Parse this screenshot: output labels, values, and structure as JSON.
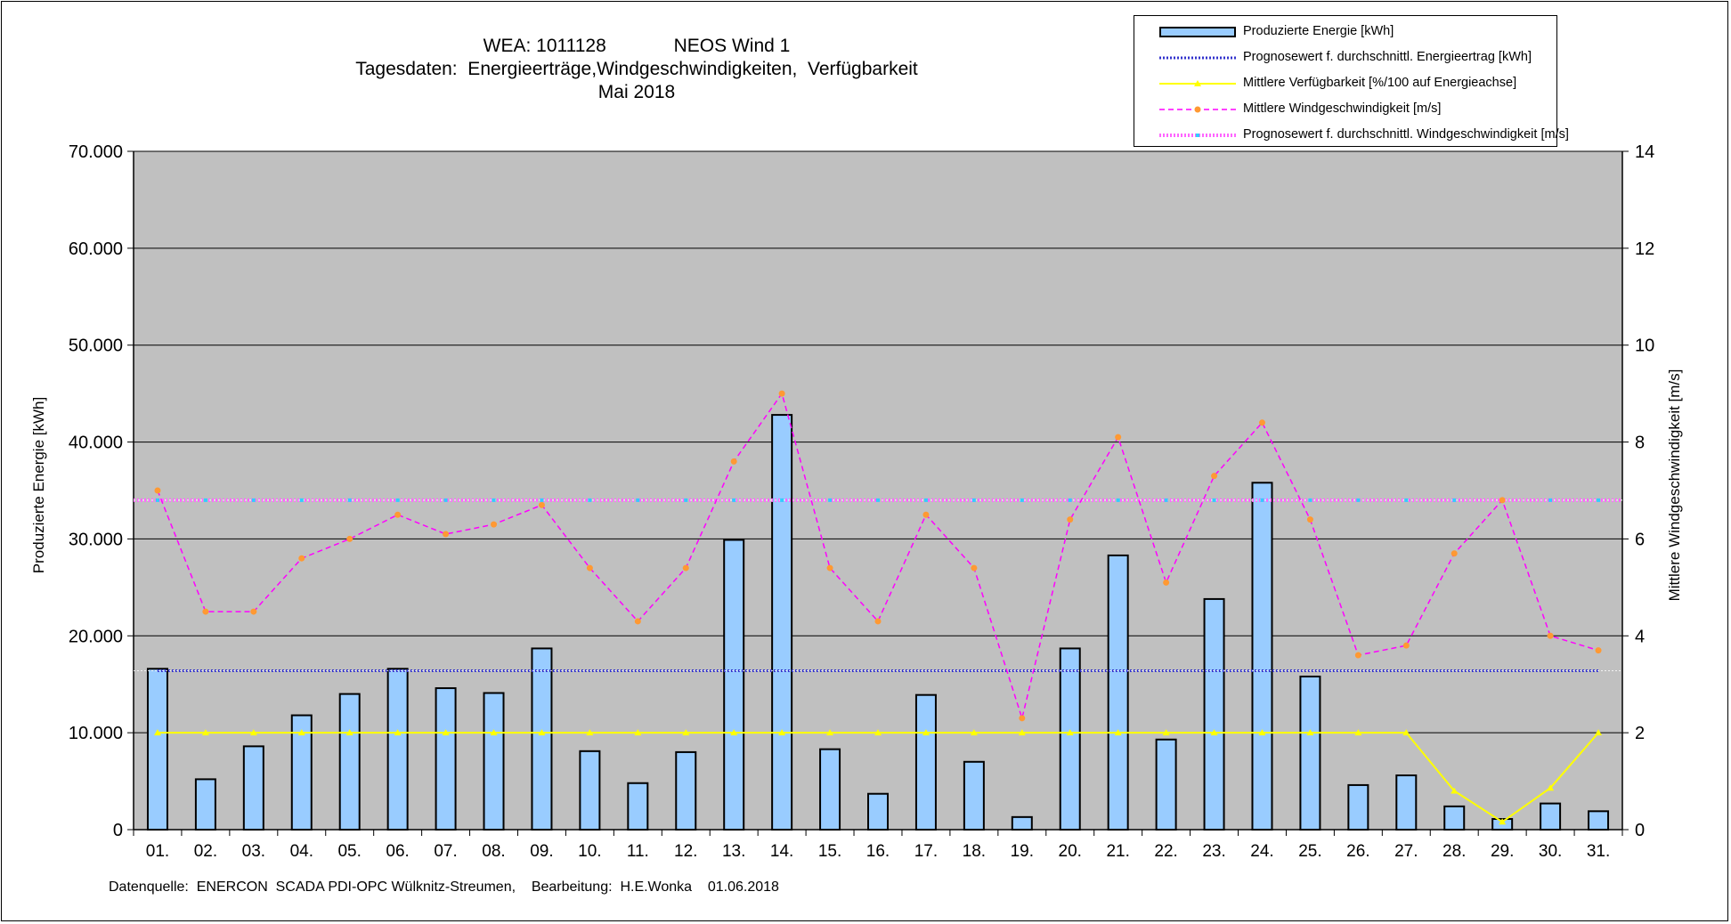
{
  "title": {
    "line1": "WEA: 1011128             NEOS Wind 1",
    "line2": "Tagesdaten:  Energieerträge,Windgeschwindigkeiten,  Verfügbarkeit",
    "line3": "Mai 2018"
  },
  "footer": "Datenquelle:  ENERCON  SCADA PDI-OPC Wülknitz-Streumen,    Bearbeitung:  H.E.Wonka    01.06.2018",
  "colors": {
    "plot_bg": "#c0c0c0",
    "bar_fill": "#99ccff",
    "energy_forecast": "#3333cc",
    "availability": "#ffff00",
    "wind": "#ff00ff",
    "wind_marker": "#ff9933",
    "wind_forecast": "#ff66ff",
    "wind_forecast_marker": "#33ccff"
  },
  "chart_data": {
    "type": "bar",
    "categories": [
      "01.",
      "02.",
      "03.",
      "04.",
      "05.",
      "06.",
      "07.",
      "08.",
      "09.",
      "10.",
      "11.",
      "12.",
      "13.",
      "14.",
      "15.",
      "16.",
      "17.",
      "18.",
      "19.",
      "20.",
      "21.",
      "22.",
      "23.",
      "24.",
      "25.",
      "26.",
      "27.",
      "28.",
      "29.",
      "30.",
      "31."
    ],
    "ylabel": "Produzierte Energie [kWh]",
    "ylabel_right": "Mittlere Windgeschwindigkeit [m/s]",
    "ylim": [
      0,
      70000
    ],
    "ylim_right": [
      0,
      14
    ],
    "yticks": [
      "0",
      "10.000",
      "20.000",
      "30.000",
      "40.000",
      "50.000",
      "60.000",
      "70.000"
    ],
    "yticks_right": [
      "0",
      "2",
      "4",
      "6",
      "8",
      "10",
      "12",
      "14"
    ],
    "grid": true,
    "legend_position": "top-right",
    "series": [
      {
        "name": "Produzierte Energie [kWh]",
        "type": "bar",
        "axis": "left",
        "values": [
          16600,
          5200,
          8600,
          11800,
          14000,
          16600,
          14600,
          14100,
          18700,
          8100,
          4800,
          8000,
          29900,
          42800,
          8300,
          3700,
          13900,
          7000,
          1300,
          18700,
          28300,
          9300,
          23800,
          35800,
          15800,
          4600,
          5600,
          2400,
          1100,
          2700,
          1900
        ]
      },
      {
        "name": "Prognosewert f. durchschnittl. Energieertrag  [kWh]",
        "type": "line",
        "axis": "left",
        "values": [
          16400,
          16400,
          16400,
          16400,
          16400,
          16400,
          16400,
          16400,
          16400,
          16400,
          16400,
          16400,
          16400,
          16400,
          16400,
          16400,
          16400,
          16400,
          16400,
          16400,
          16400,
          16400,
          16400,
          16400,
          16400,
          16400,
          16400,
          16400,
          16400,
          16400,
          16400
        ]
      },
      {
        "name": "Mittlere Verfügbarkeit [%/100 auf Energieachse]",
        "type": "line",
        "axis": "left",
        "values": [
          10000,
          10000,
          10000,
          10000,
          10000,
          10000,
          10000,
          10000,
          10000,
          10000,
          10000,
          10000,
          10000,
          10000,
          10000,
          10000,
          10000,
          10000,
          10000,
          10000,
          10000,
          10000,
          10000,
          10000,
          10000,
          10000,
          10000,
          4000,
          800,
          4300,
          10000
        ]
      },
      {
        "name": "Mittlere Windgeschwindigkeit [m/s]",
        "type": "line",
        "axis": "right",
        "values": [
          7.0,
          4.5,
          4.5,
          5.6,
          6.0,
          6.5,
          6.1,
          6.3,
          6.7,
          5.4,
          4.3,
          5.4,
          7.6,
          9.0,
          5.4,
          4.3,
          6.5,
          5.4,
          2.3,
          6.4,
          8.1,
          5.1,
          7.3,
          8.4,
          6.4,
          3.6,
          3.8,
          5.7,
          6.8,
          4.0,
          3.7
        ]
      },
      {
        "name": "Prognosewert f. durchschnittl. Windgeschwindigkeit [m/s]",
        "type": "line",
        "axis": "right",
        "values": [
          6.8,
          6.8,
          6.8,
          6.8,
          6.8,
          6.8,
          6.8,
          6.8,
          6.8,
          6.8,
          6.8,
          6.8,
          6.8,
          6.8,
          6.8,
          6.8,
          6.8,
          6.8,
          6.8,
          6.8,
          6.8,
          6.8,
          6.8,
          6.8,
          6.8,
          6.8,
          6.8,
          6.8,
          6.8,
          6.8,
          6.8
        ]
      }
    ]
  }
}
